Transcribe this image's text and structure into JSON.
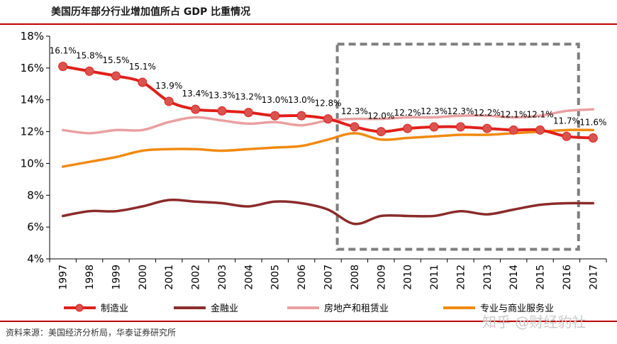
{
  "header": {
    "title": "美国历年部分行业增加值所占 GDP 比重情况"
  },
  "footer": {
    "source": "资料来源：美国经济分析局，华泰证券研究所",
    "watermark": "知乎 @财经豹社"
  },
  "colors": {
    "manufacturing": "#e0201b",
    "finance": "#8b2b2b",
    "realestate": "#e9a0a0",
    "business": "#f08a10",
    "marker": "#d9534f",
    "box": "#7f7f7f"
  },
  "chart_data": {
    "type": "line",
    "title": "美国历年部分行业增加值所占 GDP 比重情况",
    "x": [
      "1997",
      "1998",
      "1999",
      "2000",
      "2001",
      "2002",
      "2003",
      "2004",
      "2005",
      "2006",
      "2007",
      "2008",
      "2009",
      "2010",
      "2011",
      "2012",
      "2013",
      "2014",
      "2015",
      "2016",
      "2017"
    ],
    "ylim": [
      4,
      18
    ],
    "yticks": [
      4,
      6,
      8,
      10,
      12,
      14,
      16,
      18
    ],
    "ytick_labels": [
      "4%",
      "6%",
      "8%",
      "10%",
      "12%",
      "14%",
      "16%",
      "18%"
    ],
    "legend_position": "bottom",
    "highlight_box": {
      "x_from": "2007.5",
      "x_to": "2016.5"
    },
    "series": [
      {
        "key": "manufacturing",
        "name": "制造业",
        "markers": true,
        "values": [
          16.1,
          15.8,
          15.5,
          15.1,
          13.9,
          13.4,
          13.3,
          13.2,
          13.0,
          13.0,
          12.8,
          12.3,
          12.0,
          12.2,
          12.3,
          12.3,
          12.2,
          12.1,
          12.1,
          11.7,
          11.6
        ],
        "labels": [
          "16.1%",
          "15.8%",
          "15.5%",
          "15.1%",
          "13.9%",
          "13.4%",
          "13.3%",
          "13.2%",
          "13.0%",
          "13.0%",
          "12.8%",
          "12.3%",
          "12.0%",
          "12.2%",
          "12.3%",
          "12.3%",
          "12.2%",
          "12.1%",
          "12.1%",
          "11.7%",
          "11.6%"
        ]
      },
      {
        "key": "finance",
        "name": "金融业",
        "values": [
          6.7,
          7.0,
          7.0,
          7.3,
          7.7,
          7.6,
          7.5,
          7.3,
          7.6,
          7.5,
          7.1,
          6.2,
          6.7,
          6.7,
          6.7,
          7.0,
          6.8,
          7.1,
          7.4,
          7.5,
          7.5
        ]
      },
      {
        "key": "realestate",
        "name": "房地产和租赁业",
        "values": [
          12.1,
          11.9,
          12.1,
          12.1,
          12.6,
          12.9,
          12.7,
          12.5,
          12.6,
          12.4,
          12.7,
          12.8,
          12.8,
          12.9,
          12.9,
          13.0,
          13.0,
          12.9,
          13.0,
          13.3,
          13.4
        ]
      },
      {
        "key": "business",
        "name": "专业与商业服务业",
        "values": [
          9.8,
          10.1,
          10.4,
          10.8,
          10.9,
          10.9,
          10.8,
          10.9,
          11.0,
          11.1,
          11.5,
          11.9,
          11.5,
          11.6,
          11.7,
          11.8,
          11.8,
          11.9,
          12.0,
          12.1,
          12.1
        ]
      }
    ]
  }
}
